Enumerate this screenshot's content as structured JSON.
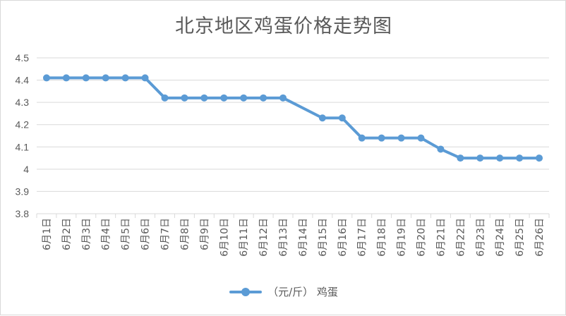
{
  "chart_data": {
    "type": "line",
    "title": "北京地区鸡蛋价格走势图",
    "categories": [
      "6月1日",
      "6月2日",
      "6月3日",
      "6月4日",
      "6月5日",
      "6月6日",
      "6月7日",
      "6月8日",
      "6月9日",
      "6月10日",
      "6月11日",
      "6月12日",
      "6月13日",
      "6月14日",
      "6月15日",
      "6月16日",
      "6月17日",
      "6月18日",
      "6月19日",
      "6月20日",
      "6月21日",
      "6月22日",
      "6月23日",
      "6月24日",
      "6月25日",
      "6月26日"
    ],
    "series": [
      {
        "name": "（元/斤） 鸡蛋",
        "values": [
          4.41,
          4.41,
          4.41,
          4.41,
          4.41,
          4.41,
          4.32,
          4.32,
          4.32,
          4.32,
          4.32,
          4.32,
          4.32,
          null,
          4.23,
          4.23,
          4.14,
          4.14,
          4.14,
          4.14,
          4.09,
          4.05,
          4.05,
          4.05,
          4.05,
          4.05
        ]
      }
    ],
    "yticks": [
      "3.8",
      "3.9",
      "4",
      "4.1",
      "4.2",
      "4.3",
      "4.4",
      "4.5"
    ],
    "ylim": [
      3.8,
      4.5
    ],
    "xlabel": "",
    "ylabel": "",
    "grid": true,
    "legend_position": "bottom",
    "line_color": "#5b9bd5"
  }
}
